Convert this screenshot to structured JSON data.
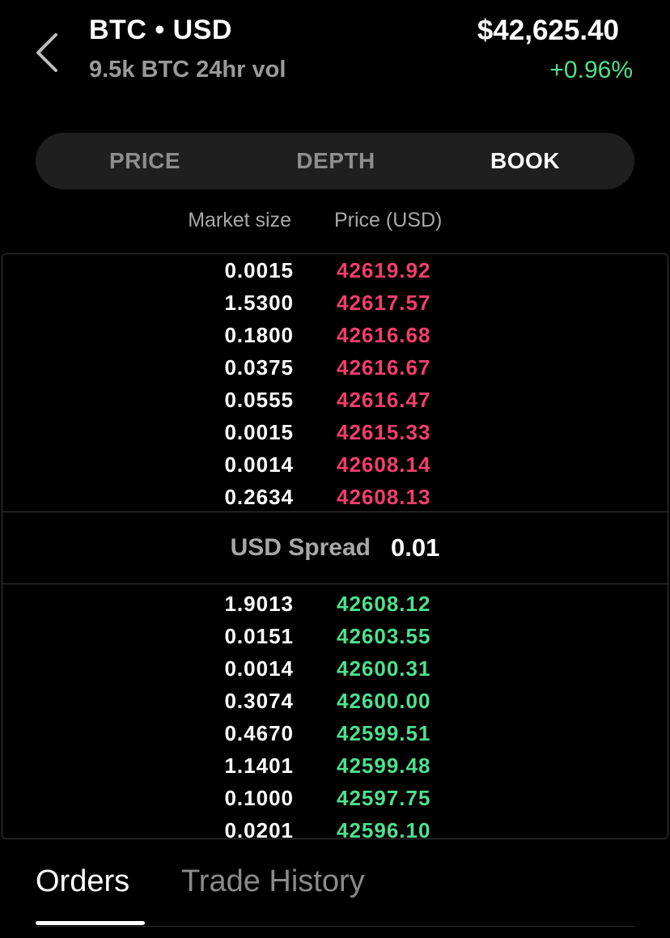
{
  "header": {
    "pair": "BTC • USD",
    "volume": "9.5k BTC 24hr vol",
    "price": "$42,625.40",
    "change": "+0.96%"
  },
  "view_tabs": [
    {
      "label": "PRICE",
      "active": false
    },
    {
      "label": "DEPTH",
      "active": false
    },
    {
      "label": "BOOK",
      "active": true
    }
  ],
  "columns": {
    "size": "Market size",
    "price": "Price (USD)"
  },
  "asks": [
    {
      "size": "0.0015",
      "price": "42619.92"
    },
    {
      "size": "1.5300",
      "price": "42617.57"
    },
    {
      "size": "0.1800",
      "price": "42616.68"
    },
    {
      "size": "0.0375",
      "price": "42616.67"
    },
    {
      "size": "0.0555",
      "price": "42616.47"
    },
    {
      "size": "0.0015",
      "price": "42615.33"
    },
    {
      "size": "0.0014",
      "price": "42608.14"
    },
    {
      "size": "0.2634",
      "price": "42608.13"
    }
  ],
  "spread": {
    "label": "USD Spread",
    "value": "0.01"
  },
  "bids": [
    {
      "size": "1.9013",
      "price": "42608.12"
    },
    {
      "size": "0.0151",
      "price": "42603.55"
    },
    {
      "size": "0.0014",
      "price": "42600.31"
    },
    {
      "size": "0.3074",
      "price": "42600.00"
    },
    {
      "size": "0.4670",
      "price": "42599.51"
    },
    {
      "size": "1.1401",
      "price": "42599.48"
    },
    {
      "size": "0.1000",
      "price": "42597.75"
    },
    {
      "size": "0.0201",
      "price": "42596.10"
    }
  ],
  "bottom_tabs": [
    {
      "label": "Orders",
      "active": true
    },
    {
      "label": "Trade History",
      "active": false
    }
  ],
  "colors": {
    "ask": "#f23e6e",
    "bid": "#4ee08e",
    "background": "#000000"
  },
  "icons": {
    "back": "chevron-left-icon"
  }
}
